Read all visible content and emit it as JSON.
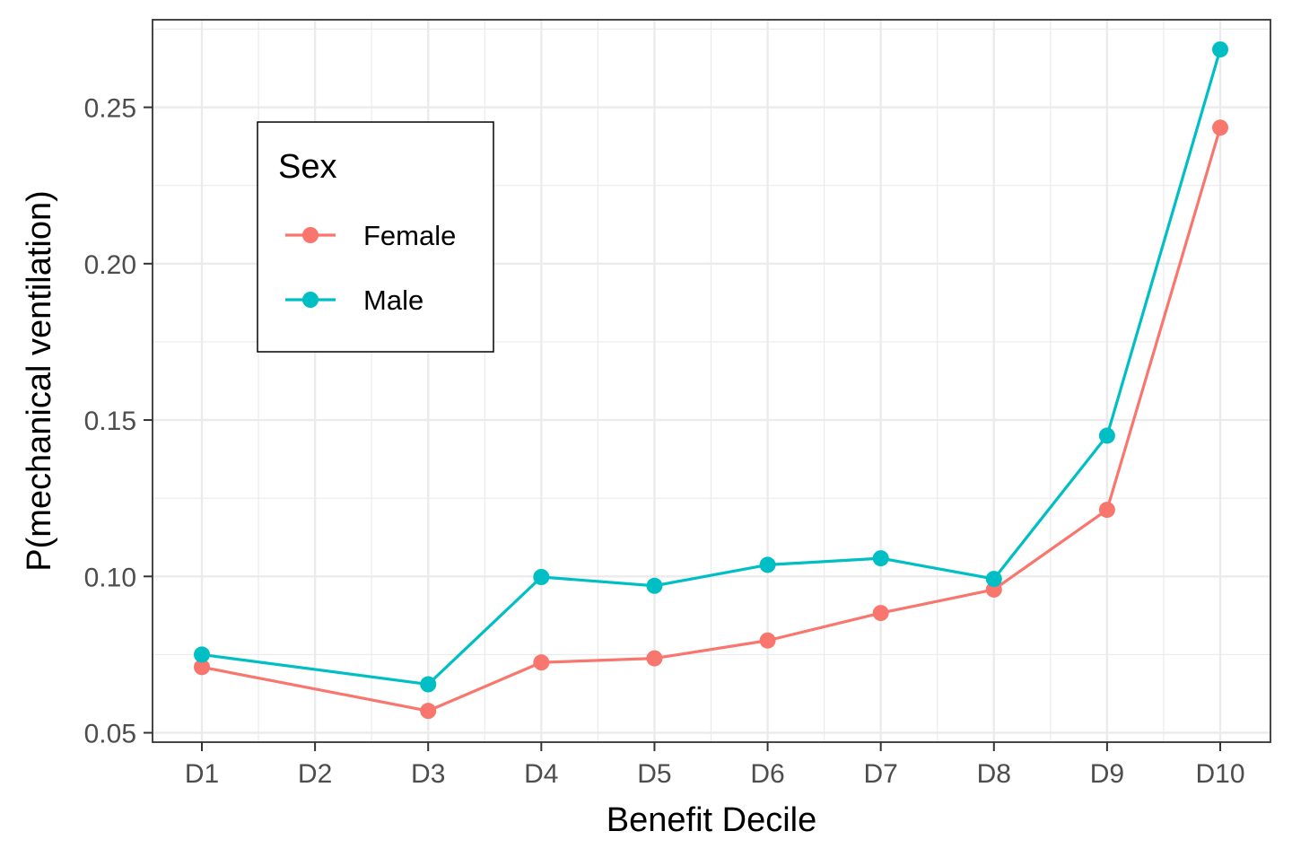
{
  "chart_data": {
    "type": "line",
    "title": "",
    "xlabel": "Benefit Decile",
    "ylabel": "P(mechanical ventilation)",
    "categories": [
      "D1",
      "D2",
      "D3",
      "D4",
      "D5",
      "D6",
      "D7",
      "D8",
      "D9",
      "D10"
    ],
    "y_ticks": [
      "0.05",
      "0.10",
      "0.15",
      "0.20",
      "0.25"
    ],
    "ylim": [
      0.047,
      0.278
    ],
    "grid": true,
    "legend": {
      "title": "Sex",
      "placement": "top-left inside"
    },
    "series": [
      {
        "name": "Female",
        "color": "#F8766D",
        "points": [
          {
            "x": "D1",
            "y": 0.071
          },
          {
            "x": "D3",
            "y": 0.057
          },
          {
            "x": "D4",
            "y": 0.0725
          },
          {
            "x": "D5",
            "y": 0.0738
          },
          {
            "x": "D6",
            "y": 0.0795
          },
          {
            "x": "D7",
            "y": 0.0883
          },
          {
            "x": "D8",
            "y": 0.0958
          },
          {
            "x": "D9",
            "y": 0.1213
          },
          {
            "x": "D10",
            "y": 0.2435
          }
        ]
      },
      {
        "name": "Male",
        "color": "#00BFC4",
        "points": [
          {
            "x": "D1",
            "y": 0.075
          },
          {
            "x": "D3",
            "y": 0.0655
          },
          {
            "x": "D4",
            "y": 0.0998
          },
          {
            "x": "D5",
            "y": 0.097
          },
          {
            "x": "D6",
            "y": 0.1037
          },
          {
            "x": "D7",
            "y": 0.1058
          },
          {
            "x": "D8",
            "y": 0.0992
          },
          {
            "x": "D9",
            "y": 0.145
          },
          {
            "x": "D10",
            "y": 0.2685
          }
        ]
      }
    ]
  }
}
